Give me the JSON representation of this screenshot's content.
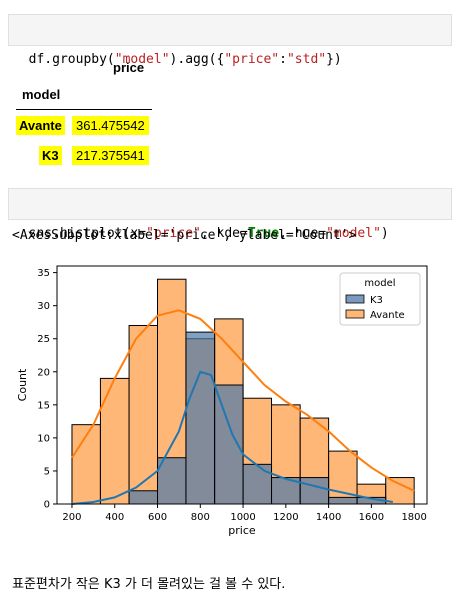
{
  "cell1": {
    "code_parts": [
      {
        "t": "df.groupby(",
        "c": ""
      },
      {
        "t": "\"model\"",
        "c": "str"
      },
      {
        "t": ").agg({",
        "c": ""
      },
      {
        "t": "\"price\"",
        "c": "str"
      },
      {
        "t": ":",
        "c": ""
      },
      {
        "t": "\"std\"",
        "c": "str"
      },
      {
        "t": "})",
        "c": ""
      }
    ]
  },
  "df_output": {
    "col_header": "price",
    "index_name": "model",
    "rows": [
      {
        "model": "Avante",
        "price": "361.475542"
      },
      {
        "model": "K3",
        "price": "217.375541"
      }
    ]
  },
  "cell2": {
    "code_parts": [
      {
        "t": "sns.histplot(x=",
        "c": ""
      },
      {
        "t": "\"price\"",
        "c": "str"
      },
      {
        "t": ", kde=",
        "c": ""
      },
      {
        "t": "True",
        "c": "kw"
      },
      {
        "t": ", hue=",
        "c": ""
      },
      {
        "t": "\"model\"",
        "c": "str"
      },
      {
        "t": ")",
        "c": ""
      }
    ]
  },
  "cell2_output": "<AxesSubplot:xlabel='price', ylabel='Count'>",
  "note": "표준편차가 작은 K3 가 더 몰려있는 걸 볼 수 있다.",
  "chart_data": {
    "type": "bar",
    "xlabel": "price",
    "ylabel": "Count",
    "xlim": [
      130,
      1860
    ],
    "ylim": [
      0,
      36
    ],
    "xticks": [
      "200",
      "400",
      "600",
      "800",
      "1000",
      "1200",
      "1400",
      "1600",
      "1800"
    ],
    "xtick_values": [
      200,
      400,
      600,
      800,
      1000,
      1200,
      1400,
      1600,
      1800
    ],
    "yticks": [
      "0",
      "5",
      "10",
      "15",
      "20",
      "25",
      "30",
      "35"
    ],
    "ytick_values": [
      0,
      5,
      10,
      15,
      20,
      25,
      30,
      35
    ],
    "grid": false,
    "legend": {
      "title": "model",
      "placement": "top-right"
    },
    "bin_edges": [
      200,
      333,
      467,
      600,
      733,
      867,
      1000,
      1133,
      1267,
      1400,
      1533,
      1667,
      1800
    ],
    "series": [
      {
        "name": "Avante",
        "color": "#ff9f4a",
        "values": [
          12,
          19,
          27,
          34,
          25,
          28,
          16,
          15,
          13,
          8,
          3,
          4
        ]
      },
      {
        "name": "K3",
        "color": "#4c78a8",
        "values": [
          0,
          0,
          2,
          7,
          26,
          18,
          6,
          4,
          4,
          1,
          1,
          0
        ]
      }
    ],
    "kde": [
      {
        "name": "Avante",
        "color": "#ff7f0e",
        "x": [
          200,
          300,
          400,
          500,
          600,
          700,
          800,
          900,
          1000,
          1100,
          1200,
          1300,
          1400,
          1500,
          1600,
          1700,
          1800
        ],
        "y": [
          7,
          12,
          19,
          25,
          28.5,
          29.3,
          28,
          25,
          21.5,
          18,
          15.5,
          13.5,
          11,
          8,
          5.5,
          3.5,
          2
        ]
      },
      {
        "name": "K3",
        "color": "#1f77b4",
        "x": [
          200,
          300,
          400,
          500,
          600,
          700,
          750,
          800,
          850,
          900,
          950,
          1000,
          1100,
          1200,
          1300,
          1400,
          1500,
          1600,
          1700
        ],
        "y": [
          0,
          0.3,
          1,
          2.5,
          5,
          11,
          16,
          20,
          19.5,
          15,
          10.5,
          7.5,
          5,
          3.8,
          3,
          2.2,
          1.5,
          0.8,
          0.3
        ]
      }
    ]
  }
}
